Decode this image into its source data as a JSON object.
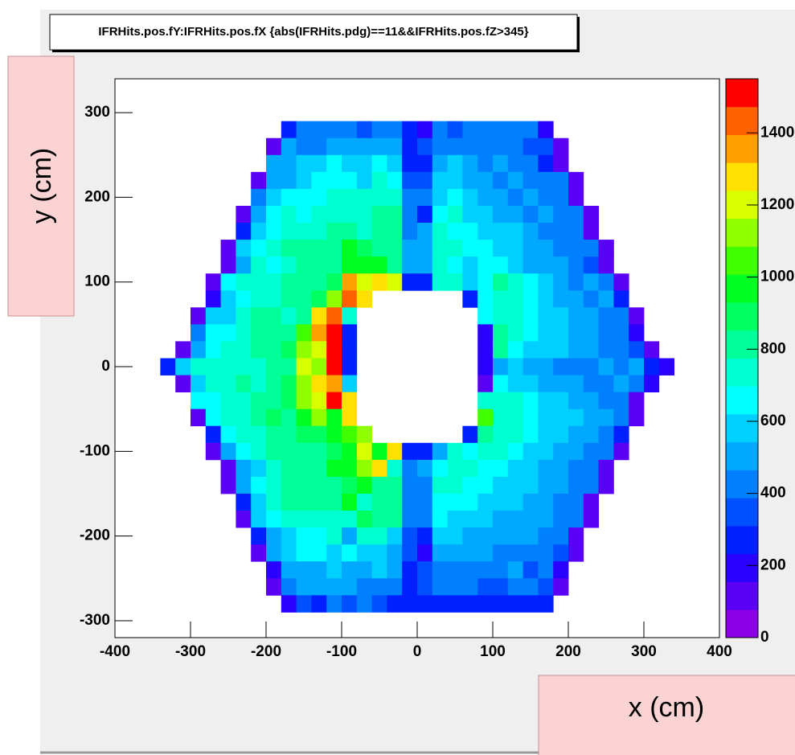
{
  "chart_data": {
    "type": "heatmap",
    "title": "IFRHits.pos.fY:IFRHits.pos.fX {abs(IFRHits.pdg)==11&&IFRHits.pos.fZ>345}",
    "x_label": "x (cm)",
    "y_label": "y (cm)",
    "xlim": [
      -400,
      400
    ],
    "ylim": [
      -320,
      340
    ],
    "xticks": [
      -400,
      -300,
      -200,
      -100,
      0,
      100,
      200,
      300,
      400
    ],
    "yticks": [
      -300,
      -200,
      -100,
      0,
      100,
      200,
      300
    ],
    "zlim": [
      0,
      1550
    ],
    "zticks": [
      0,
      200,
      400,
      600,
      800,
      1000,
      1200,
      1400
    ],
    "palette": [
      "#8a00e6",
      "#5a00f5",
      "#2a00ff",
      "#0020ff",
      "#0050ff",
      "#0080ff",
      "#00a8ff",
      "#00d0ff",
      "#00ffff",
      "#00ffd0",
      "#00ff98",
      "#00ff60",
      "#00ff20",
      "#40ff00",
      "#90ff00",
      "#d8ff00",
      "#ffe000",
      "#ffa000",
      "#ff6000",
      "#ff0000"
    ],
    "x": [
      -330,
      -310,
      -290,
      -270,
      -250,
      -230,
      -210,
      -190,
      -170,
      -150,
      -130,
      -110,
      -90,
      -70,
      -50,
      -30,
      -10,
      10,
      30,
      50,
      70,
      90,
      110,
      130,
      150,
      170,
      190,
      210,
      230,
      250,
      270,
      290,
      310,
      330
    ],
    "y": [
      280,
      260,
      240,
      220,
      200,
      180,
      160,
      140,
      120,
      100,
      80,
      60,
      40,
      20,
      0,
      -20,
      -40,
      -60,
      -80,
      -100,
      -120,
      -140,
      -160,
      -180,
      -200,
      -220,
      -240,
      -260,
      -280
    ],
    "z": [
      [
        null,
        null,
        null,
        null,
        null,
        null,
        null,
        null,
        250,
        420,
        420,
        430,
        420,
        380,
        420,
        420,
        250,
        200,
        400,
        350,
        420,
        420,
        420,
        430,
        420,
        220,
        null,
        null,
        null,
        null,
        null,
        null,
        null,
        null
      ],
      [
        null,
        null,
        null,
        null,
        null,
        null,
        null,
        100,
        480,
        450,
        460,
        520,
        480,
        500,
        500,
        480,
        300,
        320,
        450,
        420,
        430,
        430,
        400,
        420,
        380,
        340,
        100,
        null,
        null,
        null,
        null,
        null,
        null,
        null
      ],
      [
        null,
        null,
        null,
        null,
        null,
        null,
        null,
        500,
        500,
        560,
        600,
        620,
        550,
        560,
        650,
        560,
        300,
        300,
        500,
        600,
        480,
        450,
        500,
        420,
        400,
        300,
        100,
        null,
        null,
        null,
        null,
        null,
        null,
        null
      ],
      [
        null,
        null,
        null,
        null,
        null,
        null,
        100,
        480,
        520,
        560,
        620,
        680,
        640,
        580,
        700,
        620,
        380,
        350,
        600,
        560,
        520,
        480,
        460,
        500,
        420,
        450,
        430,
        100,
        null,
        null,
        null,
        null,
        null,
        null
      ],
      [
        null,
        null,
        null,
        null,
        null,
        null,
        420,
        580,
        620,
        680,
        650,
        700,
        760,
        720,
        700,
        720,
        420,
        420,
        600,
        620,
        560,
        500,
        520,
        460,
        480,
        420,
        420,
        100,
        null,
        null,
        null,
        null,
        null,
        null
      ],
      [
        null,
        null,
        null,
        null,
        null,
        100,
        500,
        620,
        720,
        620,
        700,
        720,
        760,
        700,
        780,
        800,
        400,
        250,
        640,
        700,
        560,
        560,
        500,
        520,
        440,
        500,
        420,
        440,
        100,
        null,
        null,
        null,
        null,
        null
      ],
      [
        null,
        null,
        null,
        null,
        null,
        250,
        600,
        650,
        720,
        700,
        760,
        780,
        780,
        760,
        800,
        820,
        450,
        500,
        700,
        660,
        620,
        600,
        580,
        560,
        540,
        420,
        440,
        460,
        100,
        null,
        null,
        null,
        null,
        null
      ],
      [
        null,
        null,
        null,
        null,
        100,
        600,
        650,
        720,
        780,
        800,
        820,
        850,
        950,
        880,
        820,
        780,
        480,
        500,
        720,
        700,
        650,
        620,
        600,
        560,
        520,
        480,
        460,
        420,
        440,
        100,
        null,
        null,
        null,
        null
      ],
      [
        null,
        null,
        null,
        null,
        150,
        520,
        700,
        680,
        760,
        820,
        780,
        850,
        980,
        1000,
        950,
        800,
        520,
        540,
        700,
        620,
        600,
        640,
        620,
        580,
        520,
        540,
        480,
        450,
        380,
        120,
        null,
        null,
        null,
        null
      ],
      [
        null,
        null,
        null,
        100,
        650,
        700,
        720,
        760,
        780,
        820,
        850,
        900,
        1350,
        1200,
        1300,
        1200,
        250,
        250,
        720,
        700,
        600,
        650,
        800,
        760,
        680,
        560,
        500,
        460,
        520,
        400,
        100,
        null,
        null,
        null
      ],
      [
        null,
        null,
        null,
        200,
        560,
        680,
        740,
        700,
        800,
        780,
        880,
        1150,
        1450,
        1300,
        null,
        null,
        null,
        null,
        null,
        null,
        250,
        620,
        700,
        740,
        620,
        560,
        520,
        500,
        440,
        480,
        250,
        null,
        null,
        null
      ],
      [
        null,
        null,
        100,
        550,
        600,
        700,
        800,
        820,
        760,
        850,
        1300,
        1450,
        720,
        null,
        null,
        null,
        null,
        null,
        null,
        null,
        null,
        650,
        760,
        720,
        640,
        600,
        560,
        520,
        480,
        460,
        400,
        100,
        null,
        null
      ],
      [
        null,
        null,
        450,
        620,
        660,
        720,
        780,
        820,
        800,
        1050,
        1350,
        1550,
        250,
        null,
        null,
        null,
        null,
        null,
        null,
        null,
        null,
        200,
        780,
        700,
        620,
        600,
        560,
        480,
        520,
        450,
        420,
        200,
        null,
        null
      ],
      [
        null,
        100,
        520,
        620,
        700,
        760,
        780,
        820,
        880,
        1150,
        1200,
        1550,
        250,
        null,
        null,
        null,
        null,
        null,
        null,
        null,
        null,
        200,
        780,
        650,
        600,
        560,
        560,
        500,
        480,
        460,
        420,
        380,
        100,
        null
      ],
      [
        300,
        600,
        720,
        700,
        760,
        720,
        760,
        800,
        850,
        1200,
        1150,
        1550,
        250,
        null,
        null,
        null,
        null,
        null,
        null,
        null,
        null,
        200,
        500,
        550,
        500,
        480,
        440,
        420,
        400,
        480,
        420,
        520,
        250,
        200
      ],
      [
        null,
        100,
        560,
        700,
        720,
        780,
        720,
        820,
        880,
        1100,
        1300,
        1350,
        550,
        null,
        null,
        null,
        null,
        null,
        null,
        null,
        null,
        150,
        650,
        600,
        560,
        520,
        500,
        480,
        460,
        440,
        480,
        420,
        200,
        null
      ],
      [
        null,
        null,
        620,
        680,
        720,
        760,
        800,
        820,
        880,
        1150,
        1180,
        1550,
        1300,
        null,
        null,
        null,
        null,
        null,
        null,
        null,
        null,
        700,
        760,
        700,
        640,
        600,
        580,
        540,
        520,
        460,
        440,
        100,
        null,
        null
      ],
      [
        null,
        null,
        100,
        640,
        700,
        740,
        800,
        900,
        820,
        1000,
        1100,
        1000,
        1300,
        null,
        null,
        null,
        null,
        null,
        null,
        null,
        null,
        1050,
        760,
        740,
        680,
        600,
        580,
        560,
        520,
        480,
        460,
        100,
        null,
        null
      ],
      [
        null,
        null,
        null,
        250,
        620,
        700,
        760,
        800,
        820,
        880,
        900,
        950,
        1050,
        1150,
        null,
        null,
        null,
        null,
        null,
        null,
        250,
        800,
        760,
        700,
        640,
        580,
        560,
        500,
        480,
        450,
        250,
        null,
        null,
        null
      ],
      [
        null,
        null,
        null,
        100,
        520,
        640,
        720,
        780,
        800,
        820,
        850,
        900,
        950,
        1200,
        1000,
        1300,
        250,
        250,
        500,
        720,
        680,
        700,
        760,
        680,
        600,
        560,
        520,
        500,
        460,
        440,
        100,
        null,
        null,
        null
      ],
      [
        null,
        null,
        null,
        null,
        150,
        500,
        560,
        700,
        780,
        820,
        850,
        950,
        1000,
        1150,
        1250,
        750,
        450,
        480,
        650,
        720,
        700,
        660,
        620,
        580,
        560,
        520,
        480,
        460,
        420,
        150,
        null,
        null,
        null,
        null
      ],
      [
        null,
        null,
        null,
        null,
        100,
        480,
        620,
        700,
        780,
        820,
        800,
        850,
        900,
        950,
        820,
        780,
        420,
        450,
        700,
        760,
        680,
        640,
        600,
        580,
        560,
        520,
        480,
        460,
        400,
        100,
        null,
        null,
        null,
        null
      ],
      [
        null,
        null,
        null,
        null,
        null,
        250,
        600,
        700,
        800,
        780,
        820,
        800,
        1000,
        760,
        820,
        800,
        440,
        460,
        680,
        640,
        620,
        600,
        580,
        560,
        540,
        500,
        460,
        440,
        100,
        null,
        null,
        null,
        null,
        null
      ],
      [
        null,
        null,
        null,
        null,
        null,
        100,
        560,
        650,
        700,
        720,
        760,
        740,
        720,
        900,
        780,
        820,
        400,
        420,
        640,
        600,
        580,
        560,
        540,
        520,
        500,
        480,
        460,
        420,
        100,
        null,
        null,
        null,
        null,
        null
      ],
      [
        null,
        null,
        null,
        null,
        null,
        null,
        250,
        520,
        600,
        640,
        680,
        700,
        520,
        720,
        760,
        580,
        380,
        250,
        560,
        600,
        540,
        520,
        500,
        480,
        500,
        460,
        420,
        100,
        null,
        null,
        null,
        null,
        null,
        null
      ],
      [
        null,
        null,
        null,
        null,
        null,
        null,
        100,
        520,
        560,
        620,
        640,
        560,
        620,
        580,
        560,
        540,
        380,
        200,
        520,
        480,
        500,
        480,
        460,
        440,
        460,
        420,
        380,
        100,
        null,
        null,
        null,
        null,
        null,
        null
      ],
      [
        null,
        null,
        null,
        null,
        null,
        null,
        null,
        200,
        480,
        500,
        520,
        560,
        540,
        520,
        580,
        520,
        300,
        350,
        440,
        460,
        420,
        400,
        420,
        480,
        380,
        420,
        200,
        null,
        null,
        null,
        null,
        null,
        null,
        null
      ],
      [
        null,
        null,
        null,
        null,
        null,
        null,
        null,
        100,
        460,
        480,
        500,
        500,
        480,
        460,
        420,
        460,
        250,
        350,
        400,
        420,
        400,
        380,
        380,
        400,
        420,
        350,
        100,
        null,
        null,
        null,
        null,
        null,
        null,
        null
      ],
      [
        null,
        null,
        null,
        null,
        null,
        null,
        null,
        null,
        200,
        350,
        300,
        400,
        350,
        400,
        350,
        300,
        250,
        300,
        250,
        300,
        250,
        250,
        300,
        250,
        300,
        250,
        null,
        null,
        null,
        null,
        null,
        null,
        null,
        null
      ]
    ]
  }
}
